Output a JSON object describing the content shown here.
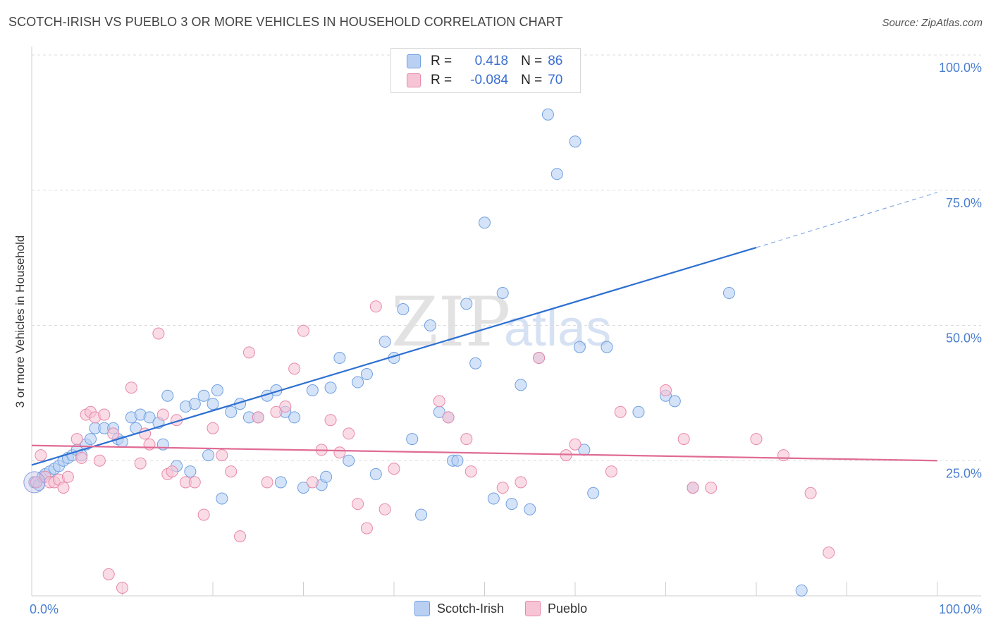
{
  "title": "SCOTCH-IRISH VS PUEBLO 3 OR MORE VEHICLES IN HOUSEHOLD CORRELATION CHART",
  "source": "Source: ZipAtlas.com",
  "watermark": {
    "zip": "ZIP",
    "atlas": "atlas"
  },
  "legend": {
    "r_label": "R =",
    "n_label": "N =",
    "rows": [
      {
        "series": "Scotch-Irish",
        "r": "0.418",
        "n": "86",
        "color": "#6fa0e0",
        "fill": "#b9d0f3"
      },
      {
        "series": "Pueblo",
        "r": "-0.084",
        "n": "70",
        "color": "#e889a8",
        "fill": "#f7c4d5"
      }
    ]
  },
  "bottom_legend": [
    {
      "label": "Scotch-Irish",
      "color": "#6fa0e0",
      "fill": "#b9d0f3"
    },
    {
      "label": "Pueblo",
      "color": "#e889a8",
      "fill": "#f7c4d5"
    }
  ],
  "chart_data": {
    "type": "scatter",
    "xlabel": "",
    "ylabel": "3 or more Vehicles in Household",
    "xlim": [
      0,
      100
    ],
    "ylim": [
      0,
      100
    ],
    "x_tick_labels": [
      {
        "value": 0,
        "label": "0.0%"
      },
      {
        "value": 100,
        "label": "100.0%"
      }
    ],
    "y_tick_labels": [
      {
        "value": 25,
        "label": "25.0%"
      },
      {
        "value": 50,
        "label": "50.0%"
      },
      {
        "value": 75,
        "label": "75.0%"
      },
      {
        "value": 100,
        "label": "100.0%"
      }
    ],
    "grid": true,
    "series": [
      {
        "name": "Scotch-Irish",
        "color": "#6fa0e0",
        "fill": "#b9d0f3",
        "trend": {
          "x": [
            0,
            80
          ],
          "y": [
            24.2,
            64.4
          ],
          "dashed_to": [
            100,
            74.6
          ],
          "color": "#2d6fd1"
        },
        "points": [
          [
            0.3,
            21
          ],
          [
            0.8,
            20.5
          ],
          [
            1.2,
            22
          ],
          [
            1.5,
            22.5
          ],
          [
            2,
            23
          ],
          [
            2.5,
            23.5
          ],
          [
            3,
            24
          ],
          [
            3.5,
            25
          ],
          [
            4,
            25.5
          ],
          [
            4.5,
            26
          ],
          [
            5,
            27
          ],
          [
            5.5,
            26
          ],
          [
            6,
            28
          ],
          [
            6.5,
            29
          ],
          [
            7,
            31
          ],
          [
            8,
            31
          ],
          [
            9,
            31
          ],
          [
            9.5,
            29
          ],
          [
            10,
            28.5
          ],
          [
            11,
            33
          ],
          [
            11.5,
            31
          ],
          [
            12,
            33.5
          ],
          [
            13,
            33
          ],
          [
            14,
            32
          ],
          [
            14.5,
            28
          ],
          [
            15,
            37
          ],
          [
            16,
            24
          ],
          [
            17,
            35
          ],
          [
            17.5,
            23
          ],
          [
            18,
            35.5
          ],
          [
            19,
            37
          ],
          [
            19.5,
            26
          ],
          [
            20,
            35.5
          ],
          [
            20.5,
            38
          ],
          [
            21,
            18
          ],
          [
            22,
            34
          ],
          [
            23,
            35.5
          ],
          [
            24,
            33
          ],
          [
            25,
            33
          ],
          [
            26,
            37
          ],
          [
            27,
            38
          ],
          [
            27.5,
            21
          ],
          [
            28,
            34
          ],
          [
            29,
            33
          ],
          [
            30,
            20
          ],
          [
            31,
            38
          ],
          [
            32,
            20.5
          ],
          [
            32.5,
            22
          ],
          [
            33,
            38.5
          ],
          [
            34,
            44
          ],
          [
            35,
            25
          ],
          [
            36,
            39.5
          ],
          [
            37,
            41
          ],
          [
            38,
            22.5
          ],
          [
            39,
            47
          ],
          [
            40,
            44
          ],
          [
            41,
            53
          ],
          [
            42,
            29
          ],
          [
            43,
            15
          ],
          [
            44,
            50
          ],
          [
            45,
            34
          ],
          [
            46,
            33
          ],
          [
            46.5,
            25
          ],
          [
            47,
            25
          ],
          [
            48,
            54
          ],
          [
            49,
            43
          ],
          [
            50,
            69
          ],
          [
            51,
            18
          ],
          [
            52,
            56
          ],
          [
            53,
            17
          ],
          [
            54,
            39
          ],
          [
            55,
            16
          ],
          [
            56,
            44
          ],
          [
            57,
            89
          ],
          [
            58,
            78
          ],
          [
            60,
            84
          ],
          [
            60.5,
            46
          ],
          [
            61,
            27
          ],
          [
            62,
            19
          ],
          [
            63.5,
            46
          ],
          [
            67,
            34
          ],
          [
            70,
            37
          ],
          [
            71,
            36
          ],
          [
            73,
            20
          ],
          [
            77,
            56
          ],
          [
            85,
            1
          ]
        ]
      },
      {
        "name": "Pueblo",
        "color": "#e889a8",
        "fill": "#f7c4d5",
        "trend": {
          "x": [
            0,
            100
          ],
          "y": [
            27.8,
            25.0
          ],
          "color": "#e06b95"
        },
        "points": [
          [
            0.5,
            21
          ],
          [
            1,
            26
          ],
          [
            1.5,
            22
          ],
          [
            2,
            21
          ],
          [
            2.5,
            21
          ],
          [
            3,
            21.5
          ],
          [
            3.5,
            20
          ],
          [
            4,
            22
          ],
          [
            5,
            29
          ],
          [
            5.5,
            25.5
          ],
          [
            6,
            33.5
          ],
          [
            6.5,
            34
          ],
          [
            7,
            33
          ],
          [
            7.5,
            25
          ],
          [
            8,
            33.5
          ],
          [
            8.5,
            4
          ],
          [
            9,
            30
          ],
          [
            10,
            1.5
          ],
          [
            11,
            38.5
          ],
          [
            12,
            24.5
          ],
          [
            12.5,
            30
          ],
          [
            13,
            28
          ],
          [
            14,
            48.5
          ],
          [
            14.5,
            33.5
          ],
          [
            15,
            22.5
          ],
          [
            15.5,
            23
          ],
          [
            16,
            32.5
          ],
          [
            17,
            21
          ],
          [
            18,
            21
          ],
          [
            19,
            15
          ],
          [
            20,
            31
          ],
          [
            21,
            26
          ],
          [
            22,
            23
          ],
          [
            23,
            11
          ],
          [
            24,
            45
          ],
          [
            25,
            33
          ],
          [
            26,
            21
          ],
          [
            27,
            34
          ],
          [
            28,
            35
          ],
          [
            29,
            42
          ],
          [
            30,
            49
          ],
          [
            31,
            21
          ],
          [
            32,
            27
          ],
          [
            33,
            32.5
          ],
          [
            34,
            26.5
          ],
          [
            35,
            30
          ],
          [
            36,
            17
          ],
          [
            37,
            12.5
          ],
          [
            38,
            53.5
          ],
          [
            39,
            16
          ],
          [
            40,
            23.5
          ],
          [
            45,
            36
          ],
          [
            46,
            33
          ],
          [
            48,
            29
          ],
          [
            48.5,
            23
          ],
          [
            52,
            20
          ],
          [
            54,
            21
          ],
          [
            56,
            44
          ],
          [
            59,
            26
          ],
          [
            60,
            28
          ],
          [
            64,
            23
          ],
          [
            65,
            34
          ],
          [
            70,
            38
          ],
          [
            72,
            29
          ],
          [
            73,
            20
          ],
          [
            75,
            20
          ],
          [
            80,
            29
          ],
          [
            83,
            26
          ],
          [
            86,
            19
          ],
          [
            88,
            8
          ]
        ]
      }
    ]
  }
}
